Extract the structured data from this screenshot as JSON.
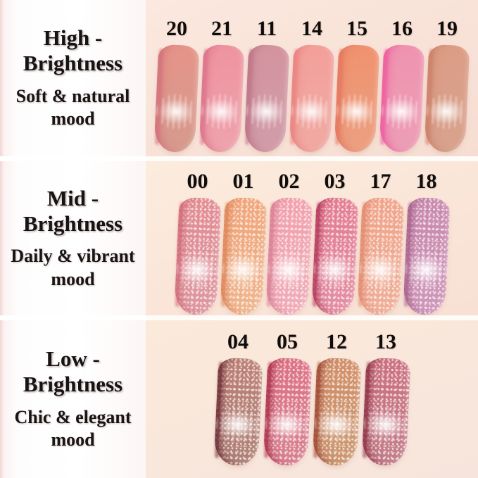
{
  "colors": {
    "page_bg": "#ffffff",
    "divider": "#fdfcf9",
    "label_edge_pink": "#f0d5d1",
    "text": "#161312"
  },
  "panels": [
    {
      "id": "high-brightness",
      "title": [
        "High -",
        "Brightness"
      ],
      "mood": [
        "Soft & natural",
        "mood"
      ],
      "skin_top": "#fbe8de",
      "skin_bottom": "#f6ddd2",
      "swatches": [
        {
          "number": "20",
          "top": "#e59489",
          "bottom": "#d69a8d",
          "edge": "#d2707b"
        },
        {
          "number": "21",
          "top": "#ef94a1",
          "bottom": "#eea2ac",
          "edge": "#db7189"
        },
        {
          "number": "11",
          "top": "#d3949f",
          "bottom": "#d19ca8",
          "edge": "#bd7488"
        },
        {
          "number": "14",
          "top": "#f3a09b",
          "bottom": "#f0a9a1",
          "edge": "#e8827f"
        },
        {
          "number": "15",
          "top": "#f0926f",
          "bottom": "#ec9f80",
          "edge": "#e4765e"
        },
        {
          "number": "16",
          "top": "#ef94b0",
          "bottom": "#ec9db6",
          "edge": "#ee5a9d"
        },
        {
          "number": "19",
          "top": "#dc9d86",
          "bottom": "#d8a28d",
          "edge": "#cc7f68"
        }
      ]
    },
    {
      "id": "mid-brightness",
      "title": [
        "Mid -",
        "Brightness"
      ],
      "mood": [
        "Daily & vibrant",
        "mood"
      ],
      "skin_top": "#fcecdd",
      "skin_bottom": "#f8e0d4",
      "swatches": [
        {
          "number": "00",
          "top": "#e28d94",
          "bottom": "#de97a0",
          "edge": "#d06a78"
        },
        {
          "number": "01",
          "top": "#f1a67b",
          "bottom": "#efb58e",
          "edge": "#dd8356"
        },
        {
          "number": "02",
          "top": "#f2a2ae",
          "bottom": "#f0acb8",
          "edge": "#d87d92"
        },
        {
          "number": "03",
          "top": "#e57e93",
          "bottom": "#e38fa3",
          "edge": "#b23457"
        },
        {
          "number": "17",
          "top": "#f1a58b",
          "bottom": "#efae98",
          "edge": "#e18a6e"
        },
        {
          "number": "18",
          "top": "#c989ae",
          "bottom": "#cf97ba",
          "edge": "#a75f89"
        }
      ]
    },
    {
      "id": "low-brightness",
      "title": [
        "Low -",
        "Brightness"
      ],
      "mood": [
        "Chic & elegant",
        "mood"
      ],
      "skin_top": "#fbe9da",
      "skin_bottom": "#f7e5dd",
      "swatches": [
        {
          "number": "04",
          "top": "#bd8176",
          "bottom": "#b08076",
          "edge": "#6b2a33"
        },
        {
          "number": "05",
          "top": "#dd7285",
          "bottom": "#d8808f",
          "edge": "#a92e48"
        },
        {
          "number": "12",
          "top": "#d2906a",
          "bottom": "#cb9770",
          "edge": "#9c432f"
        },
        {
          "number": "13",
          "top": "#cc7181",
          "bottom": "#c37d89",
          "edge": "#8c2f42"
        }
      ]
    }
  ]
}
